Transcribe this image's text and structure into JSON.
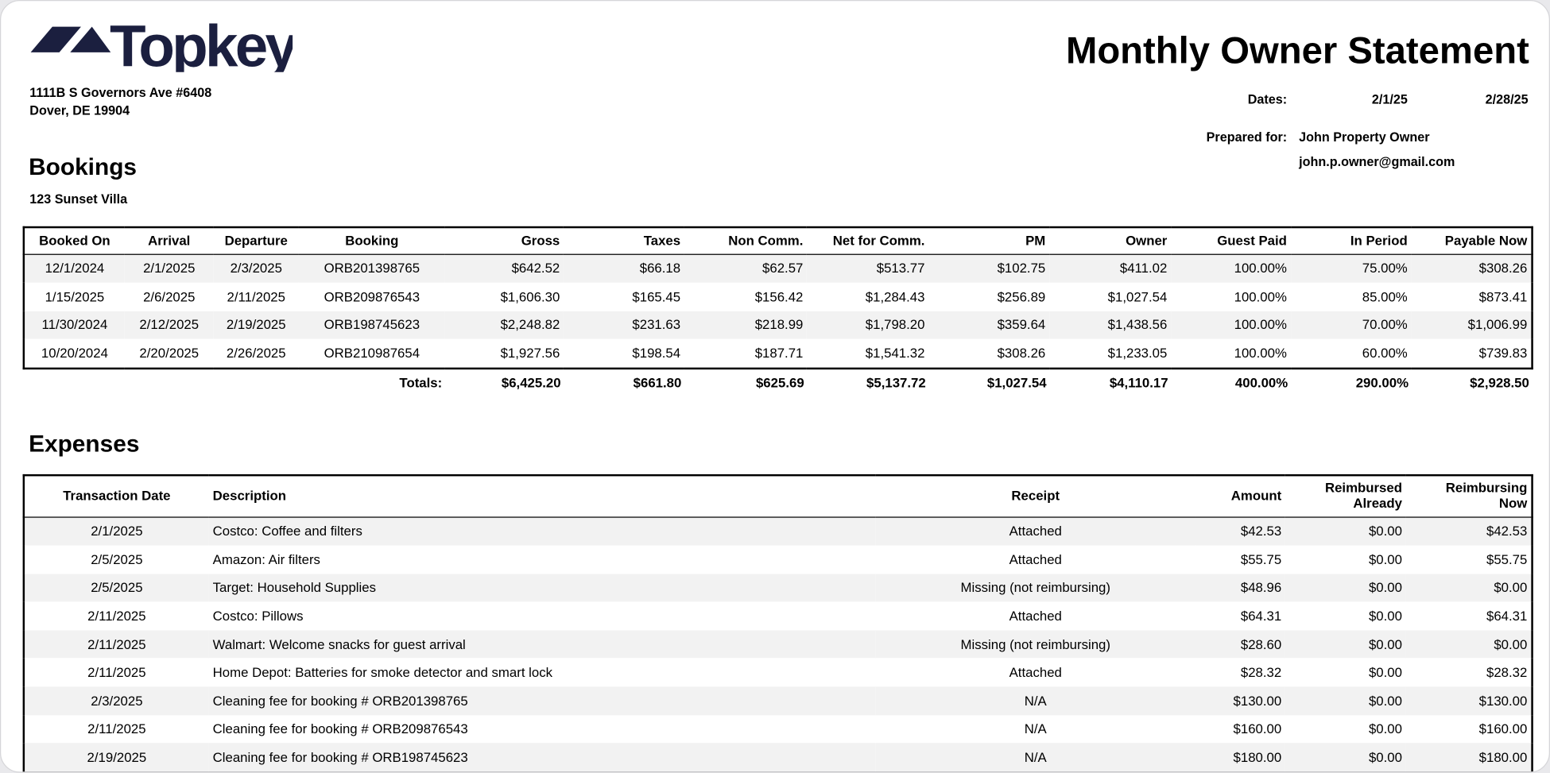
{
  "company": {
    "name": "Topkey",
    "brand_color": "#1b1f3f",
    "address_line1": "1111B S Governors Ave #6408",
    "address_line2": "Dover, DE 19904"
  },
  "title": "Monthly Owner Statement",
  "dates": {
    "label": "Dates:",
    "start": "2/1/25",
    "end": "2/28/25"
  },
  "prepared_for": {
    "label": "Prepared for:",
    "name": "John Property Owner",
    "email": "john.p.owner@gmail.com"
  },
  "bookings": {
    "heading": "Bookings",
    "property": "123 Sunset Villa",
    "columns": [
      "Booked On",
      "Arrival",
      "Departure",
      "Booking",
      "Gross",
      "Taxes",
      "Non Comm.",
      "Net for Comm.",
      "PM",
      "Owner",
      "Guest Paid",
      "In Period",
      "Payable Now"
    ],
    "rows": [
      [
        "12/1/2024",
        "2/1/2025",
        "2/3/2025",
        "ORB201398765",
        "$642.52",
        "$66.18",
        "$62.57",
        "$513.77",
        "$102.75",
        "$411.02",
        "100.00%",
        "75.00%",
        "$308.26"
      ],
      [
        "1/15/2025",
        "2/6/2025",
        "2/11/2025",
        "ORB209876543",
        "$1,606.30",
        "$165.45",
        "$156.42",
        "$1,284.43",
        "$256.89",
        "$1,027.54",
        "100.00%",
        "85.00%",
        "$873.41"
      ],
      [
        "11/30/2024",
        "2/12/2025",
        "2/19/2025",
        "ORB198745623",
        "$2,248.82",
        "$231.63",
        "$218.99",
        "$1,798.20",
        "$359.64",
        "$1,438.56",
        "100.00%",
        "70.00%",
        "$1,006.99"
      ],
      [
        "10/20/2024",
        "2/20/2025",
        "2/26/2025",
        "ORB210987654",
        "$1,927.56",
        "$198.54",
        "$187.71",
        "$1,541.32",
        "$308.26",
        "$1,233.05",
        "100.00%",
        "60.00%",
        "$739.83"
      ]
    ],
    "totals": {
      "label": "Totals:",
      "values": [
        "$6,425.20",
        "$661.80",
        "$625.69",
        "$5,137.72",
        "$1,027.54",
        "$4,110.17",
        "400.00%",
        "290.00%",
        "$2,928.50"
      ]
    }
  },
  "expenses": {
    "heading": "Expenses",
    "columns": [
      "Transaction Date",
      "Description",
      "Receipt",
      "Amount",
      "Reimbursed Already",
      "Reimbursing Now"
    ],
    "rows": [
      [
        "2/1/2025",
        "Costco: Coffee and filters",
        "Attached",
        "$42.53",
        "$0.00",
        "$42.53"
      ],
      [
        "2/5/2025",
        "Amazon: Air filters",
        "Attached",
        "$55.75",
        "$0.00",
        "$55.75"
      ],
      [
        "2/5/2025",
        "Target: Household Supplies",
        "Missing (not reimbursing)",
        "$48.96",
        "$0.00",
        "$0.00"
      ],
      [
        "2/11/2025",
        "Costco: Pillows",
        "Attached",
        "$64.31",
        "$0.00",
        "$64.31"
      ],
      [
        "2/11/2025",
        "Walmart: Welcome snacks for guest arrival",
        "Missing (not reimbursing)",
        "$28.60",
        "$0.00",
        "$0.00"
      ],
      [
        "2/11/2025",
        "Home Depot: Batteries for smoke detector and smart lock",
        "Attached",
        "$28.32",
        "$0.00",
        "$28.32"
      ],
      [
        "2/3/2025",
        "Cleaning fee for booking # ORB201398765",
        "N/A",
        "$130.00",
        "$0.00",
        "$130.00"
      ],
      [
        "2/11/2025",
        "Cleaning fee for booking # ORB209876543",
        "N/A",
        "$160.00",
        "$0.00",
        "$160.00"
      ],
      [
        "2/19/2025",
        "Cleaning fee for booking # ORB198745623",
        "N/A",
        "$180.00",
        "$0.00",
        "$180.00"
      ]
    ]
  }
}
